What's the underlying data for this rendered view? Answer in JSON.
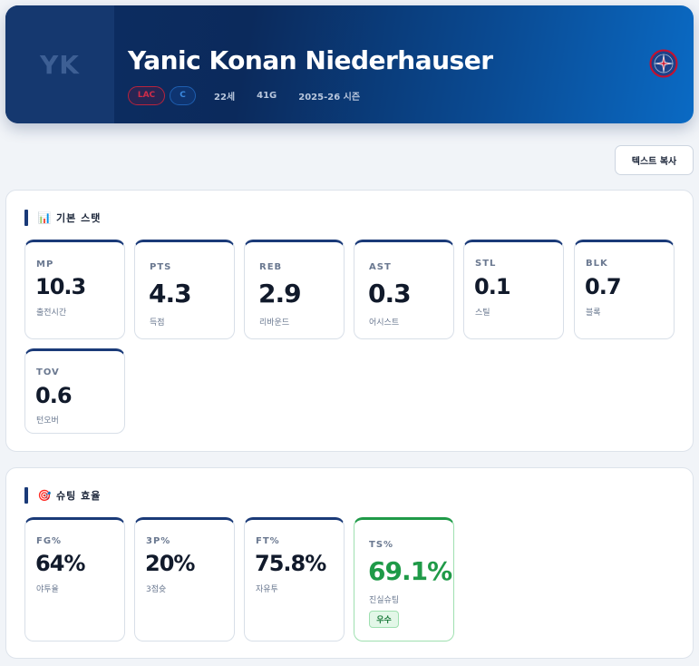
{
  "header": {
    "initials": "YK",
    "name": "Yanic Konan Niederhauser",
    "team": "LAC",
    "position": "C",
    "age": "22세",
    "games": "41G",
    "season": "2025-26 시즌",
    "logo_icon": "clippers-logo-icon"
  },
  "toolbar": {
    "copy_label": "텍스트 복사"
  },
  "basic": {
    "title_emoji": "📊",
    "title": "기본 스탯",
    "stats": [
      {
        "abbr": "MP",
        "value": "10.3",
        "desc": "출전시간"
      },
      {
        "abbr": "PTS",
        "value": "4.3",
        "desc": "득점"
      },
      {
        "abbr": "REB",
        "value": "2.9",
        "desc": "리바운드"
      },
      {
        "abbr": "AST",
        "value": "0.3",
        "desc": "어시스트"
      },
      {
        "abbr": "STL",
        "value": "0.1",
        "desc": "스틸"
      },
      {
        "abbr": "BLK",
        "value": "0.7",
        "desc": "블록"
      },
      {
        "abbr": "TOV",
        "value": "0.6",
        "desc": "턴오버"
      }
    ]
  },
  "shooting": {
    "title_emoji": "🎯",
    "title": "슈팅 효율",
    "stats": [
      {
        "abbr": "FG%",
        "value": "64%",
        "desc": "야투율"
      },
      {
        "abbr": "3P%",
        "value": "20%",
        "desc": "3점슛"
      },
      {
        "abbr": "FT%",
        "value": "75.8%",
        "desc": "자유투"
      },
      {
        "abbr": "TS%",
        "value": "69.1%",
        "desc": "진실슈팅",
        "badge": "우수"
      }
    ]
  },
  "colors": {
    "accent": "#1a3a78",
    "good": "#1f9a48",
    "team_red": "#c8102e",
    "team_blue": "#1d428a"
  }
}
